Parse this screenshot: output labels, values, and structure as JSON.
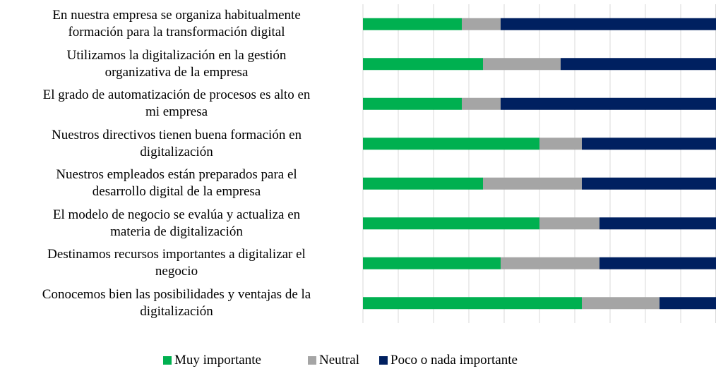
{
  "chart_data": {
    "type": "stacked-barh",
    "categories": [
      "En nuestra empresa se organiza habitualmente\nformación para la transformación digital",
      "Utilizamos la digitalización en la gestión\norganizativa de la empresa",
      "El grado de automatización de procesos es alto en\nmi empresa",
      "Nuestros directivos tienen buena formación en\ndigitalización",
      "Nuestros empleados están preparados para el\ndesarrollo digital de la empresa",
      "El modelo de negocio se evalúa y actualiza en\nmateria de digitalización",
      "Destinamos recursos importantes a digitalizar el\nnegocio",
      "Conocemos bien las posibilidades y ventajas de la\ndigitalización"
    ],
    "series": [
      {
        "name": "Muy importante",
        "color": "#00b050",
        "values": [
          28,
          34,
          28,
          50,
          34,
          50,
          39,
          62
        ]
      },
      {
        "name": "Neutral",
        "color": "#a5a5a5",
        "values": [
          11,
          22,
          11,
          12,
          28,
          17,
          28,
          22
        ]
      },
      {
        "name": "Poco o nada importante",
        "color": "#002060",
        "values": [
          61,
          44,
          61,
          38,
          38,
          33,
          33,
          16
        ]
      }
    ],
    "xlim": [
      0,
      100
    ],
    "xticks": [
      0,
      10,
      20,
      30,
      40,
      50,
      60,
      70,
      80,
      90,
      100
    ],
    "grid": true
  }
}
